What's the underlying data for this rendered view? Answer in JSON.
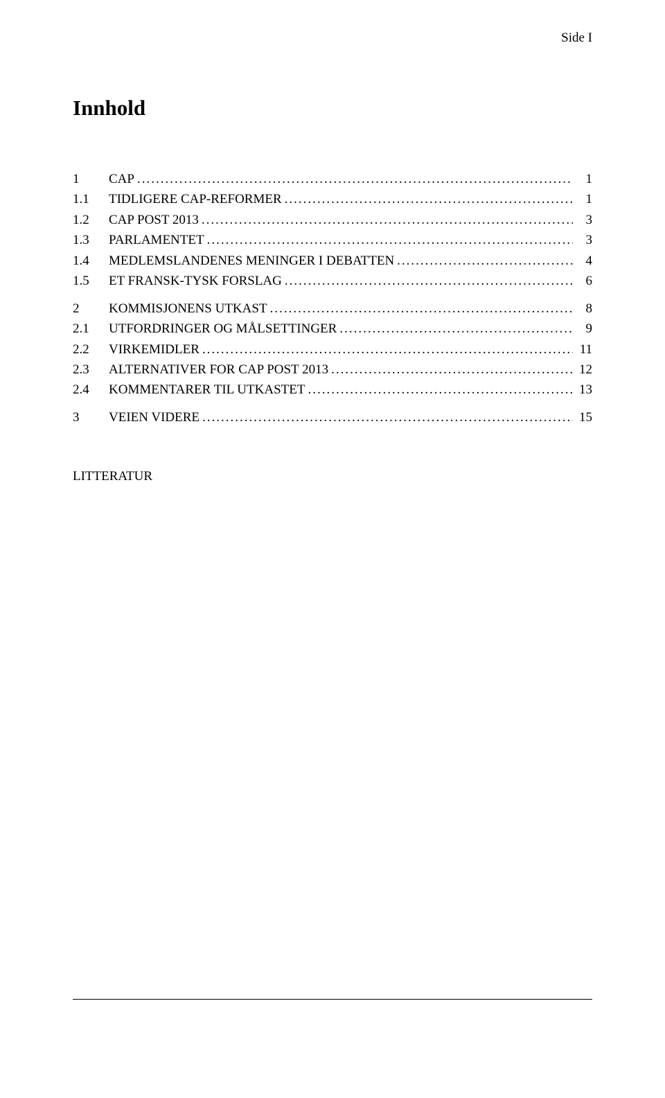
{
  "page_label": "Side I",
  "title": "Innhold",
  "literature_label": "LITTERATUR",
  "toc": {
    "s1": {
      "num": "1",
      "label": "CAP",
      "page": "1"
    },
    "s1_1": {
      "num": "1.1",
      "label": "TIDLIGERE CAP-REFORMER",
      "page": "1"
    },
    "s1_2": {
      "num": "1.2",
      "label": "CAP POST 2013",
      "page": "3"
    },
    "s1_3": {
      "num": "1.3",
      "label": "PARLAMENTET",
      "page": "3"
    },
    "s1_4": {
      "num": "1.4",
      "label": "MEDLEMSLANDENES MENINGER I DEBATTEN",
      "page": "4"
    },
    "s1_5": {
      "num": "1.5",
      "label": "ET FRANSK-TYSK FORSLAG",
      "page": "6"
    },
    "s2": {
      "num": "2",
      "label": "KOMMISJONENS UTKAST",
      "page": "8"
    },
    "s2_1": {
      "num": "2.1",
      "label": "UTFORDRINGER OG MÅLSETTINGER",
      "page": "9"
    },
    "s2_2": {
      "num": "2.2",
      "label": "VIRKEMIDLER",
      "page": "11"
    },
    "s2_3": {
      "num": "2.3",
      "label": "ALTERNATIVER FOR CAP POST 2013",
      "page": "12"
    },
    "s2_4": {
      "num": "2.4",
      "label": "KOMMENTARER TIL UTKASTET",
      "page": "13"
    },
    "s3": {
      "num": "3",
      "label": "VEIEN VIDERE",
      "page": "15"
    }
  }
}
